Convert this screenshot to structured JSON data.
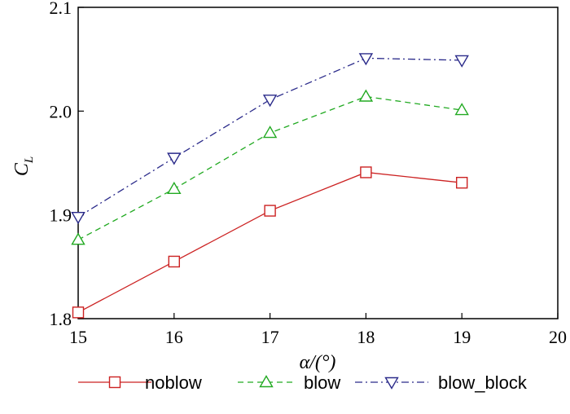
{
  "chart_data": {
    "type": "line",
    "x": [
      15,
      16,
      17,
      18,
      19
    ],
    "xlim": [
      15,
      20
    ],
    "ylim": [
      1.8,
      2.1
    ],
    "xticks": [
      "15",
      "16",
      "17",
      "18",
      "19",
      "20"
    ],
    "yticks": [
      "1.8",
      "1.9",
      "2.0",
      "2.1"
    ],
    "xlabel": "α/(°)",
    "ylabel_main": "C",
    "ylabel_sub": "L",
    "series": [
      {
        "name": "noblow",
        "color": "#cc2222",
        "dash": "solid",
        "marker": "square",
        "values": [
          1.806,
          1.855,
          1.904,
          1.941,
          1.931
        ]
      },
      {
        "name": "blow",
        "color": "#22aa22",
        "dash": "dashed",
        "marker": "triangle-up",
        "values": [
          1.876,
          1.925,
          1.979,
          2.014,
          2.001
        ]
      },
      {
        "name": "blow_block",
        "color": "#2a2a8a",
        "dash": "dashdot",
        "marker": "triangle-down",
        "values": [
          1.898,
          1.955,
          2.011,
          2.051,
          2.049
        ]
      }
    ],
    "legend_position": "bottom",
    "grid": false
  }
}
